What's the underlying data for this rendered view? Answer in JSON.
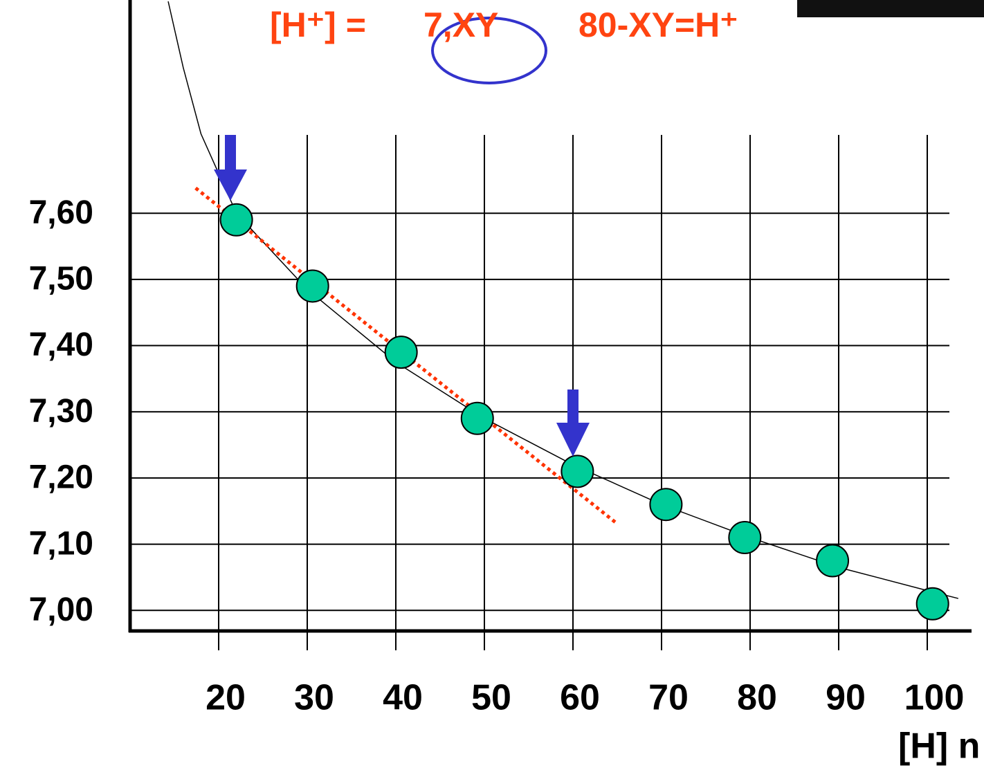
{
  "chart_data": {
    "type": "scatter",
    "annotations": [
      "[H⁺] =",
      "7,XY",
      "80-XY=H⁺"
    ],
    "x_label": "[H] n",
    "xlim": [
      10,
      105
    ],
    "ylim": [
      6.97,
      7.92
    ],
    "xticks": [
      20,
      30,
      40,
      50,
      60,
      70,
      80,
      90,
      100
    ],
    "yticks": [
      {
        "value": 7.0,
        "label": "7,00"
      },
      {
        "value": 7.1,
        "label": "7,10"
      },
      {
        "value": 7.2,
        "label": "7,20"
      },
      {
        "value": 7.3,
        "label": "7,30"
      },
      {
        "value": 7.4,
        "label": "7,40"
      },
      {
        "value": 7.5,
        "label": "7,50"
      },
      {
        "value": 7.6,
        "label": "7,60"
      }
    ],
    "grid": true,
    "series": [
      {
        "color": "#00cc99",
        "x": [
          22,
          30.6,
          40.6,
          49.2,
          60.5,
          70.5,
          79.4,
          89.3,
          100.6
        ],
        "values": [
          7.59,
          7.49,
          7.39,
          7.29,
          7.21,
          7.16,
          7.11,
          7.075,
          7.01
        ]
      },
      {
        "color": "#000000",
        "style": "line",
        "x": [
          14.3,
          16,
          18,
          22,
          30,
          40,
          50,
          60,
          70,
          80,
          90,
          100,
          103.5
        ],
        "values": [
          7.92,
          7.82,
          7.72,
          7.6,
          7.485,
          7.375,
          7.29,
          7.22,
          7.16,
          7.11,
          7.065,
          7.03,
          7.018
        ]
      },
      {
        "color": "#ff3300",
        "style": "dotted",
        "x": [
          17.4,
          64.8
        ],
        "values": [
          7.638,
          7.133
        ]
      }
    ]
  }
}
